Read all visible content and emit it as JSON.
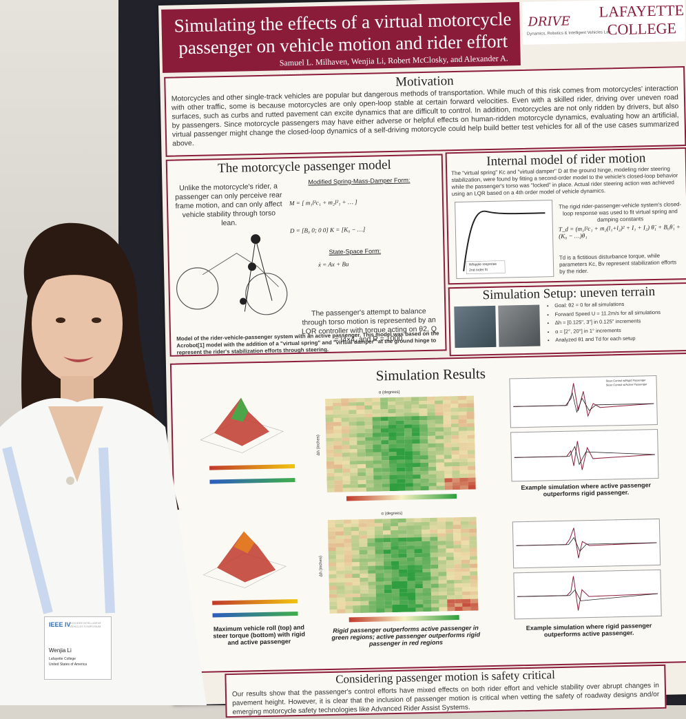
{
  "poster": {
    "title_line1": "Simulating the effects of a virtual motorcycle",
    "title_line2": "passenger on vehicle motion and rider effort",
    "authors": "Samuel L. Milhaven, Wenjia Li, Robert McClosky, and Alexander A. Brown",
    "logo_mark": "DRIVE",
    "logo_sub": "Dynamics, Robotics & Intelligent Vehicles Lab",
    "college_line1": "LAFAYETTE",
    "college_line2": "COLLEGE"
  },
  "motivation": {
    "title": "Motivation",
    "text": "Motorcycles and other single-track vehicles are popular but dangerous methods of transportation. While much of this risk comes from motorcycles' interaction with other traffic, some is because motorcycles are only open-loop stable at certain forward velocities. Even with a skilled rider, driving over uneven road surfaces, such as curbs and rutted pavement can excite dynamics that are difficult to control. In addition, motorcycles are not only ridden by drivers, but also by passengers. Since motorcycle passengers may have either adverse or helpful effects on human-ridden motorcycle dynamics, evaluating how an artificial, virtual passenger might change the closed-loop dynamics of a self-driving motorcycle could help build better test vehicles for all of the use cases summarized above."
  },
  "passenger_model": {
    "title": "The motorcycle passenger model",
    "intro": "Unlike the motorcycle's rider, a passenger can only perceive rear frame motion, and can only affect vehicle stability through torso lean.",
    "form1": "Modified Spring-Mass-Damper Form:",
    "form2": "State-Space Form:",
    "lqr": "The passenger's attempt to balance through torso motion is represented by an LQR controller with torque acting on θ2, Q = I4×4, and R = 1000.",
    "caption": "Model of the rider-vehicle-passenger system with an active passenger. This model was based on the Acrobot[1] model with the addition of a \"virtual spring\" and \"virtual damper\" at the ground hinge to represent the rider's stabilization efforts through steering."
  },
  "rider_model": {
    "title": "Internal model of rider motion",
    "text1": "The \"virtual spring\" Kc and \"virtual damper\" D at the ground hinge, modeling rider steering stabilization, were found by fitting a second-order model to the vehicle's closed-loop behavior while the passenger's torso was \"locked\" in place. Actual rider steering action was achieved using an LQR based on a 4th order model of vehicle dynamics.",
    "text2": "The rigid rider-passenger-vehicle system's closed-loop response was used to fit virtual spring and damping constants",
    "text3": "Td is a fictitious disturbance torque, while parameters Kc, Bv represent stabilization efforts by the rider.",
    "legend1": "Whipple response",
    "legend2": "2nd order fit"
  },
  "setup": {
    "title": "Simulation Setup: uneven terrain",
    "items": [
      "Goal: θ2 = 0 for all simulations",
      "Forward Speed U = 11.2m/s for all simulations",
      "Δh = [0.125\", 3\"] in 0.125\" increments",
      "α = [2°, 20°] in 1° increments",
      "Analyzed θ1 and Td for each setup"
    ]
  },
  "results": {
    "title": "Simulation Results",
    "caption_left": "Maximum vehicle roll (top) and steer torque (bottom) with rigid and active passenger",
    "caption_mid": "Rigid passenger outperforms active passenger in green regions; active passenger outperforms rigid passenger in red regions",
    "caption_right_top": "Example simulation where active passenger outperforms rigid passenger.",
    "caption_right_bottom": "Example simulation where rigid passenger outperforms active passenger.",
    "plot_legend1": "Steer Control w/Rigid Passenger",
    "plot_legend2": "Steer Control w/Active Passenger",
    "alpha_label": "α (degrees)",
    "dh_label": "Δh (inches)"
  },
  "conclusion": {
    "title": "Considering passenger motion is safety critical",
    "text": "Our results show that the passenger's control efforts have mixed effects on both rider effort and vehicle stability over abrupt changes in pavement height. However, it is clear that the inclusion of passenger motion is critical when vetting the safety of roadway designs and/or emerging motorcycle safety technologies like Advanced Rider Assist Systems."
  },
  "badge": {
    "name": "Wenjia Li",
    "college": "Lafayette College",
    "country": "United States of America",
    "logo": "IEEE IV",
    "header": "2024 IEEE INTELLIGENT VEHICLES SYMPOSIUM"
  },
  "colors": {
    "maroon": "#8a1c3a",
    "poster_bg": "#f3efe7"
  }
}
